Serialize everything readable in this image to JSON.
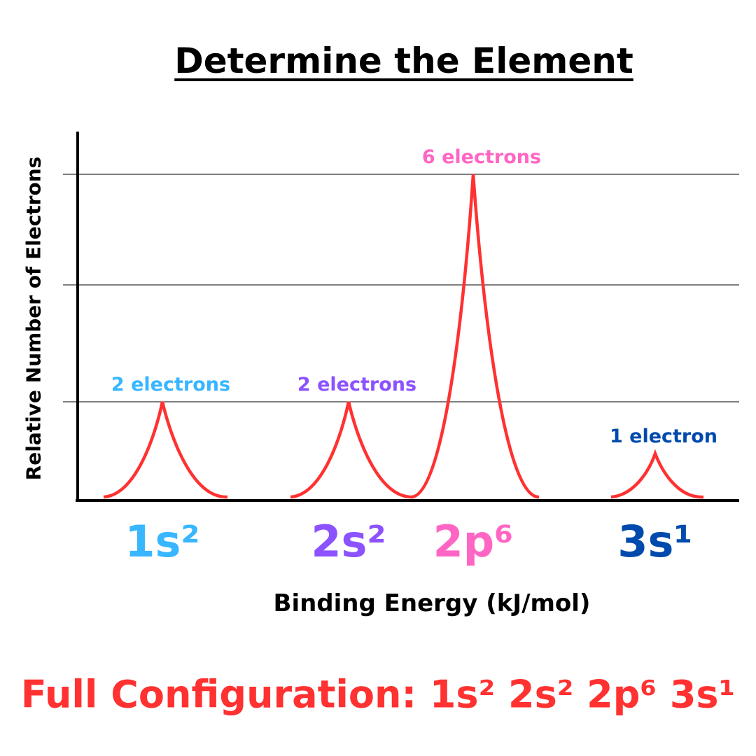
{
  "chart_data": {
    "type": "line",
    "title": "Determine the Element",
    "xlabel": "Binding Energy (kJ/mol)",
    "ylabel": "Relative Number of Electrons",
    "grid": true,
    "gridlines": [
      2,
      4,
      6
    ],
    "peaks": [
      {
        "orbital": "1s²",
        "electrons": 2,
        "label": "2 electrons",
        "color": "#38b6ff"
      },
      {
        "orbital": "2s²",
        "electrons": 2,
        "label": "2 electrons",
        "color": "#8c52ff"
      },
      {
        "orbital": "2p⁶",
        "electrons": 6,
        "label": "6 electrons",
        "color": "#ff66c4"
      },
      {
        "orbital": "3s¹",
        "electrons": 1,
        "label": "1 electron",
        "color": "#004aad"
      }
    ],
    "line_color": "#ff3131"
  },
  "footer": {
    "config": "Full Configuration: 1s² 2s² 2p⁶ 3s¹",
    "color": "#ff3131"
  }
}
